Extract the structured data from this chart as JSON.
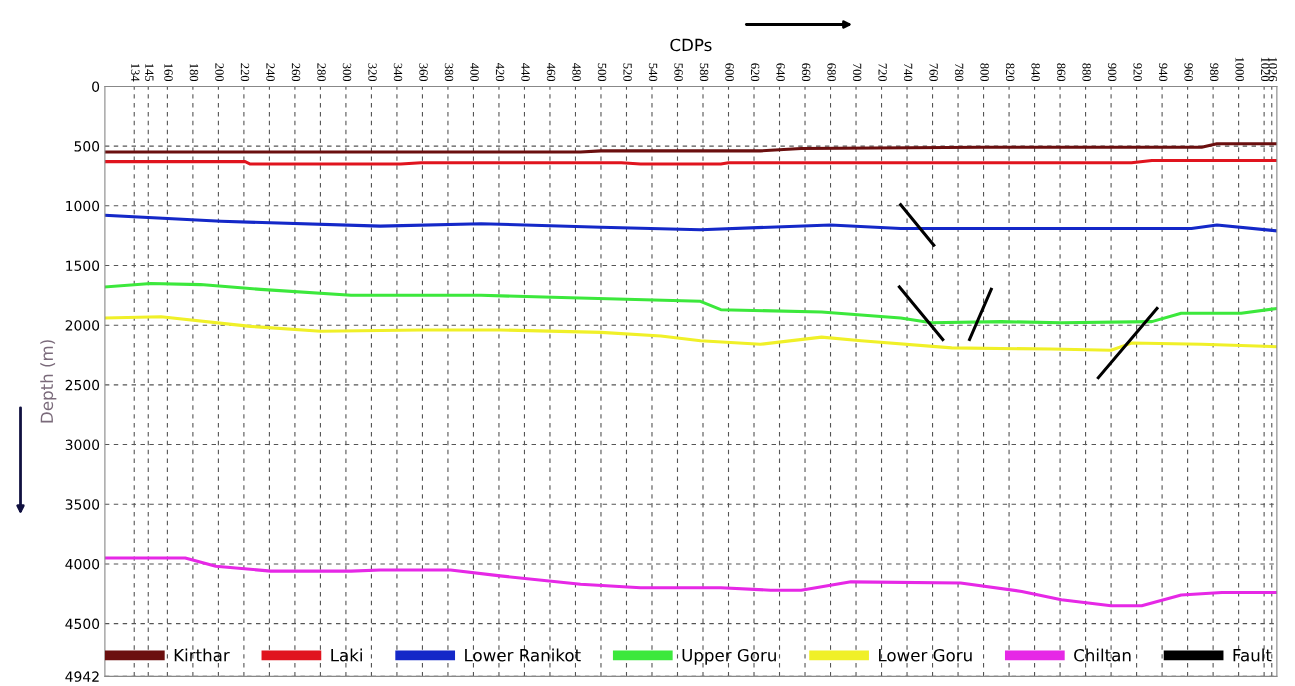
{
  "chart_data": {
    "type": "line",
    "xlabel": "CDPs",
    "ylabel": "Depth (m)",
    "xlim": [
      111,
      1030
    ],
    "ylim": [
      4942,
      0
    ],
    "xticks": [
      134,
      145,
      160,
      180,
      200,
      220,
      240,
      260,
      280,
      300,
      320,
      340,
      360,
      380,
      400,
      420,
      440,
      460,
      480,
      500,
      520,
      540,
      560,
      580,
      600,
      620,
      640,
      660,
      680,
      700,
      720,
      740,
      760,
      780,
      800,
      820,
      840,
      860,
      880,
      900,
      920,
      940,
      960,
      980,
      1000,
      1020,
      1026
    ],
    "yticks": [
      0,
      500,
      1000,
      1500,
      2000,
      2500,
      3000,
      3500,
      4000,
      4500,
      4942
    ],
    "grid": true,
    "legend": "bottom",
    "marker": "none",
    "line_style": "solid",
    "series": [
      {
        "name": "Kirthar",
        "color": "#6b0f0f",
        "x": [
          111,
          484,
          500,
          625,
          657,
          798,
          971,
          983,
          1030
        ],
        "values": [
          550,
          550,
          540,
          540,
          520,
          510,
          510,
          480,
          480
        ]
      },
      {
        "name": "Laki",
        "color": "#e0141e",
        "x": [
          111,
          221,
          225,
          343,
          359,
          516,
          531,
          594,
          600,
          916,
          932,
          1030
        ],
        "values": [
          630,
          630,
          650,
          650,
          640,
          640,
          650,
          650,
          640,
          640,
          620,
          620
        ]
      },
      {
        "name": "Lower Ranikot",
        "color": "#1428c8",
        "x": [
          111,
          202,
          327,
          406,
          500,
          578,
          680,
          735,
          963,
          983,
          1030
        ],
        "values": [
          1080,
          1130,
          1170,
          1150,
          1180,
          1200,
          1160,
          1190,
          1190,
          1160,
          1210
        ]
      },
      {
        "name": "Upper Goru",
        "color": "#3ce83c",
        "x": [
          111,
          147,
          186,
          233,
          304,
          406,
          476,
          578,
          594,
          673,
          735,
          759,
          814,
          861,
          932,
          955,
          1002,
          1030
        ],
        "values": [
          1680,
          1650,
          1660,
          1700,
          1750,
          1750,
          1770,
          1800,
          1870,
          1890,
          1940,
          1980,
          1970,
          1980,
          1970,
          1900,
          1900,
          1860
        ]
      },
      {
        "name": "Lower Goru",
        "color": "#f0f028",
        "x": [
          111,
          155,
          225,
          280,
          359,
          421,
          500,
          547,
          578,
          625,
          673,
          704,
          775,
          853,
          900,
          916,
          971,
          1030
        ],
        "values": [
          1940,
          1930,
          2010,
          2050,
          2040,
          2040,
          2060,
          2090,
          2130,
          2160,
          2100,
          2130,
          2190,
          2200,
          2210,
          2150,
          2160,
          2180
        ]
      },
      {
        "name": "Chiltan",
        "color": "#e628e6",
        "x": [
          111,
          174,
          198,
          241,
          304,
          327,
          382,
          421,
          484,
          531,
          594,
          633,
          657,
          696,
          782,
          830,
          861,
          900,
          924,
          955,
          987,
          1030
        ],
        "values": [
          3950,
          3950,
          4020,
          4060,
          4060,
          4050,
          4050,
          4100,
          4170,
          4200,
          4200,
          4220,
          4220,
          4150,
          4160,
          4230,
          4300,
          4350,
          4350,
          4260,
          4240,
          4240
        ]
      },
      {
        "name": "Fault",
        "color": "#000000",
        "x": [
          735,
          761,
          null,
          734,
          768,
          null,
          789,
          806,
          null,
          890,
          936
        ],
        "values": [
          990,
          1330,
          null,
          1680,
          2120,
          null,
          2120,
          1700,
          null,
          2440,
          1860
        ]
      }
    ]
  }
}
